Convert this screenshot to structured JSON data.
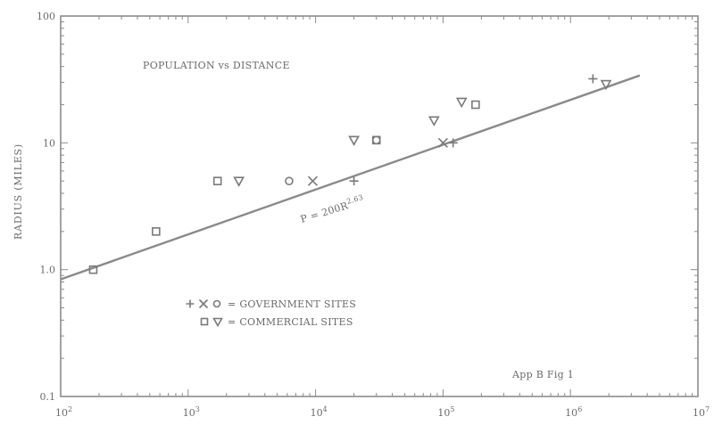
{
  "chart_data": {
    "type": "scatter",
    "title": "POPULATION vs DISTANCE",
    "xlabel": "",
    "ylabel": "RADIUS (MILES)",
    "xscale": "log",
    "yscale": "log",
    "xlim": [
      100,
      10000000
    ],
    "ylim": [
      0.1,
      100
    ],
    "x_ticks": [
      {
        "base": "10",
        "exp": "2"
      },
      {
        "base": "10",
        "exp": "3"
      },
      {
        "base": "10",
        "exp": "4"
      },
      {
        "base": "10",
        "exp": "5"
      },
      {
        "base": "10",
        "exp": "6"
      },
      {
        "base": "10",
        "exp": "7"
      }
    ],
    "y_ticks": [
      "0.1",
      "1.0",
      "10",
      "100"
    ],
    "grid": false,
    "fit_line": {
      "label_prefix": "P = 200R",
      "label_exp": "2.63",
      "points": [
        [
          100,
          0.84
        ],
        [
          3500000,
          34
        ]
      ]
    },
    "series": [
      {
        "marker": "plus",
        "x": [
          20000,
          120000,
          1500000
        ],
        "y": [
          5,
          10,
          32
        ]
      },
      {
        "marker": "x",
        "x": [
          9500,
          100000
        ],
        "y": [
          5,
          10
        ]
      },
      {
        "marker": "circle",
        "x": [
          6200,
          30000
        ],
        "y": [
          5,
          10.5
        ]
      },
      {
        "marker": "square",
        "x": [
          180,
          560,
          1700,
          30000,
          180000
        ],
        "y": [
          1.0,
          2.0,
          5,
          10.5,
          20
        ]
      },
      {
        "marker": "triangle-down",
        "x": [
          2500,
          20000,
          85000,
          140000,
          1900000
        ],
        "y": [
          5,
          10.5,
          15,
          21,
          29
        ]
      }
    ],
    "legend": [
      {
        "markers": [
          "plus",
          "x",
          "circle"
        ],
        "text": "= GOVERNMENT SITES"
      },
      {
        "markers": [
          "square",
          "triangle-down"
        ],
        "text": "= COMMERCIAL SITES"
      }
    ],
    "legend_position": "bottom-left",
    "annotation": "App B   Fig  1"
  }
}
